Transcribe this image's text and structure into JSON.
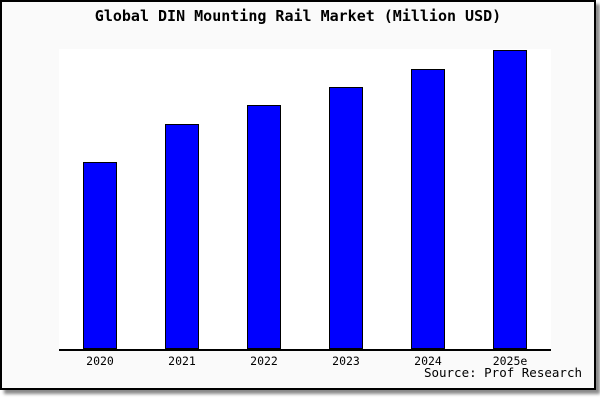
{
  "title": "Global DIN Mounting Rail Market (Million USD)",
  "source": "Source: Prof Research",
  "colors": {
    "bar_fill": "#0000FF",
    "bar_border": "#000000",
    "panel_background": "#FAFAFA",
    "panel_border": "#000000",
    "plot_background": "#FFFFFF",
    "axis_line": "#000000",
    "shadow": "#8A8A8A",
    "text": "#000000"
  },
  "chart_data": {
    "type": "bar",
    "title": "Global DIN Mounting Rail Market (Million USD)",
    "categories": [
      "2020",
      "2021",
      "2022",
      "2023",
      "2024",
      "2025e"
    ],
    "values": [
      187,
      225,
      244,
      262,
      280,
      299
    ],
    "units": "Million USD (y-axis unlabeled; values are relative estimates from bar heights)",
    "xlabel": "",
    "ylabel": "",
    "ylim": [
      0,
      300
    ],
    "grid": false,
    "legend": false,
    "y_axis_ticks": "none",
    "bar_color": "#0000FF",
    "source_note": "Source: Prof Research"
  }
}
